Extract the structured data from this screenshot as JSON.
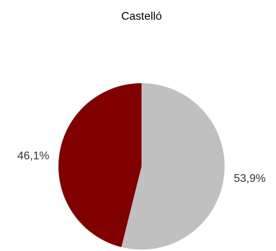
{
  "chart_data": {
    "type": "pie",
    "title": "Castelló",
    "slices": [
      {
        "value": 53.9,
        "label": "53,9%",
        "color": "#c0c0c0"
      },
      {
        "value": 46.1,
        "label": "46,1%",
        "color": "#800000"
      }
    ],
    "start_angle_deg": 0,
    "direction": "clockwise",
    "legend": "none"
  }
}
